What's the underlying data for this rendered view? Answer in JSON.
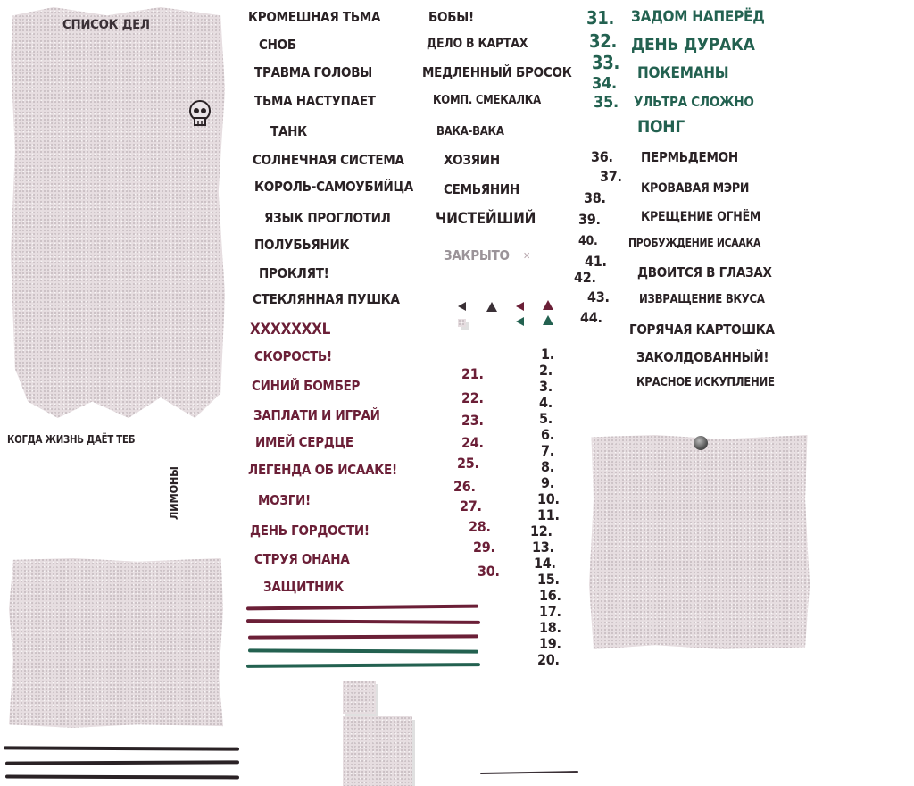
{
  "scroll_title": "СПИСОК ДЕЛ",
  "sticker_text": {
    "line": "КОГДА ЖИЗНЬ ДАЁТ ТЕБ",
    "vertical": "ЛИМОНЫ"
  },
  "col_a": [
    "КРОМЕШНАЯ ТЬМА",
    "СНОБ",
    "ТРАВМА ГОЛОВЫ",
    "ТЬМА НАСТУПАЕТ",
    "ТАНК",
    "СОЛНЕЧНАЯ СИСТЕМА",
    "КОРОЛЬ-САМОУБИЙЦА",
    "ЯЗЫК ПРОГЛОТИЛ",
    "ПОЛУБЬЯНИК",
    "ПРОКЛЯТ!",
    "СТЕКЛЯННАЯ ПУШКА"
  ],
  "col_a_maroon": [
    "XXXXXXXL",
    "СКОРОСТЬ!",
    "СИНИЙ БОМБЕР",
    "ЗАПЛАТИ И ИГРАЙ",
    "ИМЕЙ СЕРДЦЕ",
    "ЛЕГЕНДА ОБ ИСААКЕ!",
    "МОЗГИ!",
    "ДЕНЬ ГОРДОСТИ!",
    "СТРУЯ ОНАНА",
    "ЗАЩИТНИК"
  ],
  "col_b": [
    "БОБЫ!",
    "ДЕЛО В КАРТАХ",
    "МЕДЛЕННЫЙ БРОСОК",
    "КОМП. СМЕКАЛКА",
    "ВАКА-ВАКА",
    "ХОЗЯИН",
    "СЕМЬЯНИН",
    "ЧИСТЕЙШИЙ"
  ],
  "closed_label": "ЗАКРЫТО",
  "numbers_dark": [
    "1.",
    "2.",
    "3.",
    "4.",
    "5.",
    "6.",
    "7.",
    "8.",
    "9.",
    "10.",
    "11.",
    "12.",
    "13.",
    "14.",
    "15.",
    "16.",
    "17.",
    "18.",
    "19.",
    "20."
  ],
  "numbers_maroon": [
    "21.",
    "22.",
    "23.",
    "24.",
    "25.",
    "26.",
    "27.",
    "28.",
    "29.",
    "30."
  ],
  "numbers_green": [
    "31.",
    "32.",
    "33.",
    "34.",
    "35."
  ],
  "items_green": [
    "ЗАДОМ НАПЕРЁД",
    "ДЕНЬ ДУРАКА",
    "ПОКЕМАНЫ",
    "УЛЬТРА СЛОЖНО",
    "ПОНГ"
  ],
  "numbers_right": [
    "36.",
    "37.",
    "38.",
    "39.",
    "40.",
    "41.",
    "42.",
    "43.",
    "44."
  ],
  "items_right": [
    "ПЕРМЬДЕМОН",
    "КРОВАВАЯ МЭРИ",
    "КРЕЩЕНИЕ ОГНЁМ",
    "ПРОБУЖДЕНИЕ ИСААКА",
    "ДВОИТСЯ В ГЛАЗАХ",
    "ИЗВРАЩЕНИЕ ВКУСА",
    "ГОРЯЧАЯ КАРТОШКА",
    "ЗАКОЛДОВАННЫЙ!",
    "КРАСНОЕ ИСКУПЛЕНИЕ"
  ],
  "colors": {
    "dark": "#2a2225",
    "maroon": "#6b1f37",
    "green": "#236150",
    "paper": "#e6dde0"
  }
}
